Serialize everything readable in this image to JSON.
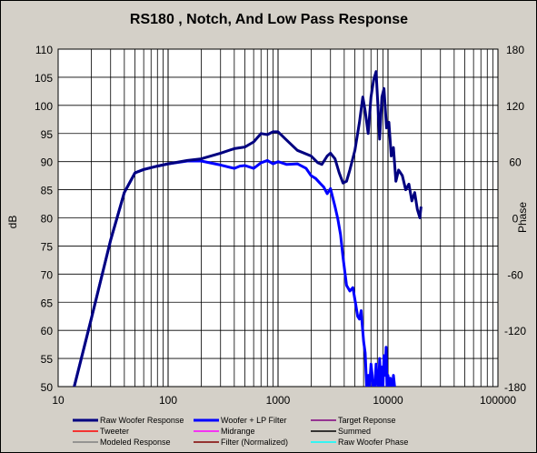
{
  "chart_data": {
    "type": "line",
    "title": "RS180 , Notch,  And Low Pass Response",
    "ylabel": "dB",
    "y2label": "Phase",
    "x_scale": "log",
    "xlim": [
      10,
      100000
    ],
    "ylim": [
      50,
      110
    ],
    "y2lim": [
      -180,
      180
    ],
    "grid": true,
    "x_ticks": [
      "10",
      "100",
      "1000",
      "10000",
      "100000"
    ],
    "y_ticks": [
      "110",
      "105",
      "100",
      "95",
      "90",
      "85",
      "80",
      "75",
      "70",
      "65",
      "60",
      "55",
      "50"
    ],
    "y2_ticks": [
      "180",
      "120",
      "60",
      "0",
      "-60",
      "-120",
      "-180"
    ],
    "legend_position": "bottom",
    "legend": [
      {
        "name": "Raw Woofer Response",
        "color": "#000080"
      },
      {
        "name": "Woofer + LP Filter",
        "color": "#0000ff"
      },
      {
        "name": "Target Reponse",
        "color": "#800080"
      },
      {
        "name": "Tweeter",
        "color": "#ff0000"
      },
      {
        "name": "Midrange",
        "color": "#ff00ff"
      },
      {
        "name": "Summed",
        "color": "#000000"
      },
      {
        "name": "Modeled Response",
        "color": "#808080"
      },
      {
        "name": "Filter (Normalized)",
        "color": "#800000"
      },
      {
        "name": "Raw Woofer Phase",
        "color": "#00ffff"
      }
    ],
    "series": [
      {
        "name": "Raw Woofer Response",
        "color": "#000080",
        "x": [
          14,
          20,
          30,
          40,
          50,
          60,
          80,
          100,
          150,
          200,
          300,
          400,
          500,
          600,
          700,
          800,
          900,
          1000,
          1200,
          1500,
          2000,
          2300,
          2500,
          2800,
          3000,
          3300,
          3600,
          3900,
          4200,
          4500,
          5000,
          5500,
          5900,
          6200,
          6600,
          7000,
          7400,
          7800,
          8100,
          8400,
          8800,
          9200,
          9700,
          10200,
          10700,
          11200,
          11800,
          12500,
          13500,
          14500,
          15500,
          16500,
          17500,
          18500,
          19500,
          20000
        ],
        "y": [
          50,
          62,
          76,
          84.5,
          88,
          88.6,
          89.2,
          89.6,
          90.2,
          90.5,
          91.5,
          92.3,
          92.6,
          93.5,
          95,
          94.8,
          95.3,
          95.3,
          93.8,
          92,
          91,
          89.8,
          89.5,
          91,
          91.5,
          90.5,
          88,
          86.2,
          86.5,
          88.5,
          92,
          97,
          101.5,
          99,
          95,
          101.5,
          104.5,
          106,
          100,
          94,
          101.5,
          103,
          96,
          97,
          91,
          92.5,
          86.5,
          88.5,
          87.5,
          85,
          86,
          83,
          84.5,
          81.5,
          80,
          82
        ]
      },
      {
        "name": "Woofer + LP Filter",
        "color": "#0000ff",
        "x": [
          14,
          20,
          30,
          40,
          50,
          60,
          80,
          100,
          150,
          200,
          300,
          400,
          450,
          500,
          600,
          700,
          800,
          900,
          1000,
          1200,
          1500,
          1800,
          2000,
          2200,
          2400,
          2600,
          2800,
          3000,
          3300,
          3500,
          3700,
          3900,
          4200,
          4500,
          4800,
          5100,
          5300,
          5500,
          5700,
          5800,
          6000,
          6200,
          6400,
          6600,
          6800,
          7000,
          7200,
          7400,
          7600,
          7800,
          8000,
          8200,
          8400,
          8600,
          8800,
          9000,
          9200,
          9400,
          9600,
          9800,
          10000,
          10200,
          10500,
          10800,
          11000,
          11200,
          11500,
          11800,
          12000
        ],
        "y": [
          50,
          62,
          76,
          84.5,
          88,
          88.6,
          89.2,
          89.6,
          90.1,
          90.1,
          89.4,
          88.8,
          89.2,
          89.3,
          88.8,
          89.8,
          90.2,
          89.6,
          90,
          89.5,
          89.6,
          88.8,
          87.5,
          87,
          86.2,
          85.5,
          84.3,
          85.2,
          82,
          79.8,
          77,
          73,
          68,
          67,
          67.6,
          64.5,
          62.5,
          62,
          63.5,
          61.5,
          58,
          56,
          50,
          52,
          50,
          54,
          52,
          48,
          50,
          54,
          51,
          49,
          55,
          50,
          53.5,
          50,
          55.5,
          52,
          57,
          50,
          52,
          49,
          51.5,
          50.5,
          50,
          52,
          50,
          48,
          49
        ]
      }
    ]
  }
}
